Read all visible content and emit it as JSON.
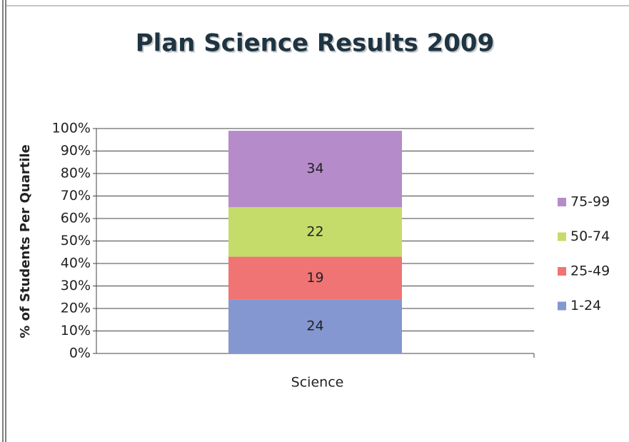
{
  "chart_data": {
    "type": "stacked_bar",
    "title": "Plan Science Results  2009",
    "y_label": "% of Students Per Quartile",
    "categories": [
      "Science"
    ],
    "series": [
      {
        "name": "1-24",
        "color": "#8497d0",
        "values": [
          24
        ]
      },
      {
        "name": "25-49",
        "color": "#f07474",
        "values": [
          19
        ]
      },
      {
        "name": "50-74",
        "color": "#c6dc6a",
        "values": [
          22
        ]
      },
      {
        "name": "75-99",
        "color": "#b58bc9",
        "values": [
          34
        ]
      }
    ],
    "ylim": [
      0,
      100
    ],
    "yticks": [
      {
        "value": 0,
        "label": "0%"
      },
      {
        "value": 10,
        "label": "10%"
      },
      {
        "value": 20,
        "label": "20%"
      },
      {
        "value": 30,
        "label": "30%"
      },
      {
        "value": 40,
        "label": "40%"
      },
      {
        "value": 50,
        "label": "50%"
      },
      {
        "value": 60,
        "label": "60%"
      },
      {
        "value": 70,
        "label": "70%"
      },
      {
        "value": 80,
        "label": "80%"
      },
      {
        "value": 90,
        "label": "90%"
      },
      {
        "value": 100,
        "label": "100%"
      }
    ],
    "grid": true,
    "legend": "right"
  }
}
